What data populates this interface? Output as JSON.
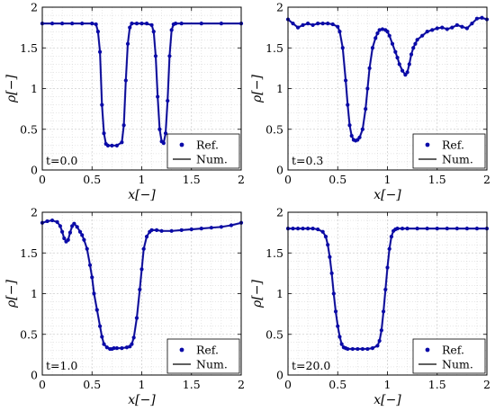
{
  "legend": {
    "ref_label": "Ref.",
    "num_label": "Num."
  },
  "colors": {
    "ref": "#0a0aa8",
    "num": "#000000",
    "grid": "#cfcfcf"
  },
  "chart_data": [
    {
      "type": "scatter",
      "time_label": "t=0.0",
      "xlabel": "x[−]",
      "ylabel": "ρ[−]",
      "xlim": [
        0,
        2
      ],
      "ylim": [
        0,
        2
      ],
      "xticks": [
        "0",
        "0.5",
        "1",
        "1.5",
        "2"
      ],
      "yticks": [
        "0",
        "0.5",
        "1",
        "1.5",
        "2"
      ],
      "grid": true,
      "legend_position": "bottom-right",
      "series": [
        {
          "name": "Ref.",
          "style": "points",
          "x": [
            0,
            0.1,
            0.2,
            0.3,
            0.4,
            0.5,
            0.54,
            0.56,
            0.58,
            0.6,
            0.62,
            0.64,
            0.66,
            0.7,
            0.75,
            0.8,
            0.82,
            0.84,
            0.86,
            0.88,
            0.9,
            0.95,
            1.0,
            1.05,
            1.1,
            1.12,
            1.14,
            1.16,
            1.18,
            1.2,
            1.22,
            1.24,
            1.26,
            1.28,
            1.3,
            1.32,
            1.34,
            1.4,
            1.6,
            1.8,
            2.0
          ],
          "y": [
            1.8,
            1.8,
            1.8,
            1.8,
            1.8,
            1.8,
            1.79,
            1.7,
            1.45,
            0.8,
            0.45,
            0.32,
            0.3,
            0.3,
            0.3,
            0.34,
            0.55,
            1.1,
            1.55,
            1.75,
            1.8,
            1.8,
            1.8,
            1.8,
            1.78,
            1.7,
            1.4,
            0.9,
            0.5,
            0.35,
            0.33,
            0.45,
            0.85,
            1.4,
            1.72,
            1.79,
            1.8,
            1.8,
            1.8,
            1.8,
            1.8
          ]
        },
        {
          "name": "Num.",
          "style": "line",
          "x": [
            0,
            0.5,
            0.54,
            0.56,
            0.58,
            0.6,
            0.62,
            0.64,
            0.66,
            0.7,
            0.75,
            0.8,
            0.82,
            0.84,
            0.86,
            0.88,
            0.9,
            1.0,
            1.1,
            1.12,
            1.14,
            1.16,
            1.18,
            1.2,
            1.22,
            1.24,
            1.26,
            1.28,
            1.3,
            1.32,
            1.34,
            2.0
          ],
          "y": [
            1.8,
            1.8,
            1.79,
            1.7,
            1.45,
            0.8,
            0.45,
            0.32,
            0.3,
            0.3,
            0.3,
            0.34,
            0.55,
            1.1,
            1.55,
            1.75,
            1.8,
            1.8,
            1.78,
            1.7,
            1.4,
            0.9,
            0.5,
            0.35,
            0.33,
            0.45,
            0.85,
            1.4,
            1.72,
            1.79,
            1.8,
            1.8
          ]
        }
      ]
    },
    {
      "type": "scatter",
      "time_label": "t=0.3",
      "xlabel": "x[−]",
      "ylabel": "ρ[−]",
      "xlim": [
        0,
        2
      ],
      "ylim": [
        0,
        2
      ],
      "xticks": [
        "0",
        "0.5",
        "1",
        "1.5",
        "2"
      ],
      "yticks": [
        "0",
        "0.5",
        "1",
        "1.5",
        "2"
      ],
      "grid": true,
      "legend_position": "bottom-right",
      "series": [
        {
          "name": "Ref.",
          "style": "points",
          "x": [
            0,
            0.05,
            0.1,
            0.15,
            0.2,
            0.25,
            0.3,
            0.35,
            0.4,
            0.45,
            0.5,
            0.52,
            0.55,
            0.58,
            0.6,
            0.62,
            0.64,
            0.66,
            0.68,
            0.7,
            0.72,
            0.75,
            0.78,
            0.8,
            0.82,
            0.85,
            0.88,
            0.9,
            0.92,
            0.95,
            0.98,
            1.0,
            1.02,
            1.05,
            1.08,
            1.1,
            1.12,
            1.15,
            1.18,
            1.2,
            1.22,
            1.24,
            1.26,
            1.28,
            1.3,
            1.35,
            1.4,
            1.45,
            1.5,
            1.55,
            1.6,
            1.65,
            1.7,
            1.75,
            1.8,
            1.85,
            1.9,
            1.95,
            2.0
          ],
          "y": [
            1.85,
            1.8,
            1.75,
            1.78,
            1.8,
            1.78,
            1.8,
            1.8,
            1.8,
            1.79,
            1.76,
            1.7,
            1.5,
            1.1,
            0.8,
            0.55,
            0.42,
            0.37,
            0.36,
            0.37,
            0.4,
            0.5,
            0.75,
            1.0,
            1.25,
            1.5,
            1.62,
            1.68,
            1.72,
            1.73,
            1.72,
            1.7,
            1.65,
            1.55,
            1.45,
            1.38,
            1.3,
            1.22,
            1.17,
            1.2,
            1.3,
            1.42,
            1.5,
            1.55,
            1.6,
            1.65,
            1.7,
            1.72,
            1.74,
            1.75,
            1.73,
            1.75,
            1.78,
            1.76,
            1.74,
            1.8,
            1.86,
            1.87,
            1.85
          ]
        },
        {
          "name": "Num.",
          "style": "line",
          "x": [
            0,
            0.05,
            0.1,
            0.15,
            0.2,
            0.25,
            0.3,
            0.35,
            0.4,
            0.45,
            0.5,
            0.52,
            0.55,
            0.58,
            0.6,
            0.62,
            0.64,
            0.66,
            0.68,
            0.7,
            0.72,
            0.75,
            0.78,
            0.8,
            0.82,
            0.85,
            0.88,
            0.9,
            0.92,
            0.95,
            0.98,
            1.0,
            1.02,
            1.05,
            1.08,
            1.1,
            1.12,
            1.15,
            1.18,
            1.2,
            1.22,
            1.24,
            1.26,
            1.28,
            1.3,
            1.35,
            1.4,
            1.45,
            1.5,
            1.55,
            1.6,
            1.65,
            1.7,
            1.75,
            1.8,
            1.85,
            1.9,
            1.95,
            2.0
          ],
          "y": [
            1.85,
            1.8,
            1.75,
            1.78,
            1.8,
            1.78,
            1.8,
            1.8,
            1.8,
            1.79,
            1.76,
            1.7,
            1.5,
            1.1,
            0.8,
            0.55,
            0.42,
            0.37,
            0.36,
            0.37,
            0.4,
            0.5,
            0.75,
            1.0,
            1.25,
            1.5,
            1.62,
            1.68,
            1.72,
            1.73,
            1.72,
            1.7,
            1.65,
            1.55,
            1.45,
            1.38,
            1.3,
            1.22,
            1.17,
            1.2,
            1.3,
            1.42,
            1.5,
            1.55,
            1.6,
            1.65,
            1.7,
            1.72,
            1.74,
            1.75,
            1.73,
            1.75,
            1.78,
            1.76,
            1.74,
            1.8,
            1.86,
            1.87,
            1.85
          ]
        }
      ]
    },
    {
      "type": "scatter",
      "time_label": "t=1.0",
      "xlabel": "x[−]",
      "ylabel": "ρ[−]",
      "xlim": [
        0,
        2
      ],
      "ylim": [
        0,
        2
      ],
      "xticks": [
        "0",
        "0.5",
        "1",
        "1.5",
        "2"
      ],
      "yticks": [
        "0",
        "0.5",
        "1",
        "1.5",
        "2"
      ],
      "grid": true,
      "legend_position": "bottom-right",
      "series": [
        {
          "name": "Ref.",
          "style": "points",
          "x": [
            0,
            0.05,
            0.1,
            0.15,
            0.18,
            0.2,
            0.22,
            0.24,
            0.26,
            0.28,
            0.3,
            0.32,
            0.35,
            0.38,
            0.4,
            0.42,
            0.45,
            0.48,
            0.5,
            0.52,
            0.55,
            0.58,
            0.6,
            0.62,
            0.65,
            0.68,
            0.7,
            0.72,
            0.75,
            0.8,
            0.85,
            0.88,
            0.9,
            0.92,
            0.95,
            0.98,
            1.0,
            1.02,
            1.05,
            1.08,
            1.1,
            1.15,
            1.2,
            1.3,
            1.4,
            1.5,
            1.6,
            1.7,
            1.8,
            1.9,
            2.0
          ],
          "y": [
            1.87,
            1.89,
            1.9,
            1.88,
            1.83,
            1.76,
            1.68,
            1.64,
            1.66,
            1.75,
            1.83,
            1.86,
            1.82,
            1.76,
            1.72,
            1.66,
            1.55,
            1.35,
            1.2,
            1.0,
            0.8,
            0.6,
            0.47,
            0.38,
            0.34,
            0.32,
            0.32,
            0.33,
            0.33,
            0.33,
            0.34,
            0.35,
            0.38,
            0.46,
            0.7,
            1.05,
            1.3,
            1.55,
            1.7,
            1.76,
            1.78,
            1.78,
            1.77,
            1.77,
            1.78,
            1.79,
            1.8,
            1.81,
            1.82,
            1.84,
            1.87
          ]
        },
        {
          "name": "Num.",
          "style": "line",
          "x": [
            0,
            0.05,
            0.1,
            0.15,
            0.18,
            0.2,
            0.22,
            0.24,
            0.26,
            0.28,
            0.3,
            0.32,
            0.35,
            0.38,
            0.4,
            0.42,
            0.45,
            0.48,
            0.5,
            0.52,
            0.55,
            0.58,
            0.6,
            0.62,
            0.65,
            0.68,
            0.7,
            0.72,
            0.75,
            0.8,
            0.85,
            0.88,
            0.9,
            0.92,
            0.95,
            0.98,
            1.0,
            1.02,
            1.05,
            1.08,
            1.1,
            1.15,
            1.2,
            1.3,
            1.4,
            1.5,
            1.6,
            1.7,
            1.8,
            1.9,
            2.0
          ],
          "y": [
            1.87,
            1.89,
            1.9,
            1.88,
            1.83,
            1.76,
            1.68,
            1.64,
            1.66,
            1.75,
            1.83,
            1.86,
            1.82,
            1.76,
            1.72,
            1.66,
            1.55,
            1.35,
            1.2,
            1.0,
            0.8,
            0.6,
            0.47,
            0.38,
            0.34,
            0.32,
            0.32,
            0.33,
            0.33,
            0.33,
            0.34,
            0.35,
            0.38,
            0.46,
            0.7,
            1.05,
            1.3,
            1.55,
            1.7,
            1.76,
            1.78,
            1.78,
            1.77,
            1.77,
            1.78,
            1.79,
            1.8,
            1.81,
            1.82,
            1.84,
            1.87
          ]
        }
      ]
    },
    {
      "type": "scatter",
      "time_label": "t=20.0",
      "xlabel": "x[−]",
      "ylabel": "ρ[−]",
      "xlim": [
        0,
        2
      ],
      "ylim": [
        0,
        2
      ],
      "xticks": [
        "0",
        "0.5",
        "1",
        "1.5",
        "2"
      ],
      "yticks": [
        "0",
        "0.5",
        "1",
        "1.5",
        "2"
      ],
      "grid": true,
      "legend_position": "bottom-right",
      "series": [
        {
          "name": "Ref.",
          "style": "points",
          "x": [
            0,
            0.05,
            0.1,
            0.15,
            0.2,
            0.25,
            0.3,
            0.35,
            0.38,
            0.4,
            0.42,
            0.44,
            0.46,
            0.48,
            0.5,
            0.52,
            0.54,
            0.56,
            0.58,
            0.6,
            0.65,
            0.7,
            0.75,
            0.8,
            0.85,
            0.9,
            0.92,
            0.94,
            0.96,
            0.98,
            1.0,
            1.02,
            1.04,
            1.06,
            1.08,
            1.1,
            1.15,
            1.2,
            1.3,
            1.4,
            1.5,
            1.6,
            1.7,
            1.8,
            1.9,
            2.0
          ],
          "y": [
            1.8,
            1.8,
            1.8,
            1.8,
            1.8,
            1.8,
            1.79,
            1.76,
            1.7,
            1.6,
            1.45,
            1.25,
            1.0,
            0.78,
            0.6,
            0.47,
            0.38,
            0.34,
            0.33,
            0.32,
            0.32,
            0.32,
            0.32,
            0.32,
            0.33,
            0.36,
            0.42,
            0.55,
            0.78,
            1.05,
            1.32,
            1.55,
            1.7,
            1.77,
            1.79,
            1.8,
            1.8,
            1.8,
            1.8,
            1.8,
            1.8,
            1.8,
            1.8,
            1.8,
            1.8,
            1.8
          ]
        },
        {
          "name": "Num.",
          "style": "line",
          "x": [
            0,
            0.05,
            0.1,
            0.15,
            0.2,
            0.25,
            0.3,
            0.35,
            0.38,
            0.4,
            0.42,
            0.44,
            0.46,
            0.48,
            0.5,
            0.52,
            0.54,
            0.56,
            0.58,
            0.6,
            0.65,
            0.7,
            0.75,
            0.8,
            0.85,
            0.9,
            0.92,
            0.94,
            0.96,
            0.98,
            1.0,
            1.02,
            1.04,
            1.06,
            1.08,
            1.1,
            1.15,
            1.2,
            1.3,
            1.4,
            1.5,
            1.6,
            1.7,
            1.8,
            1.9,
            2.0
          ],
          "y": [
            1.8,
            1.8,
            1.8,
            1.8,
            1.8,
            1.8,
            1.79,
            1.76,
            1.7,
            1.6,
            1.45,
            1.25,
            1.0,
            0.78,
            0.6,
            0.47,
            0.38,
            0.34,
            0.33,
            0.32,
            0.32,
            0.32,
            0.32,
            0.32,
            0.33,
            0.36,
            0.42,
            0.55,
            0.78,
            1.05,
            1.32,
            1.55,
            1.7,
            1.77,
            1.79,
            1.8,
            1.8,
            1.8,
            1.8,
            1.8,
            1.8,
            1.8,
            1.8,
            1.8,
            1.8,
            1.8
          ]
        }
      ]
    }
  ]
}
